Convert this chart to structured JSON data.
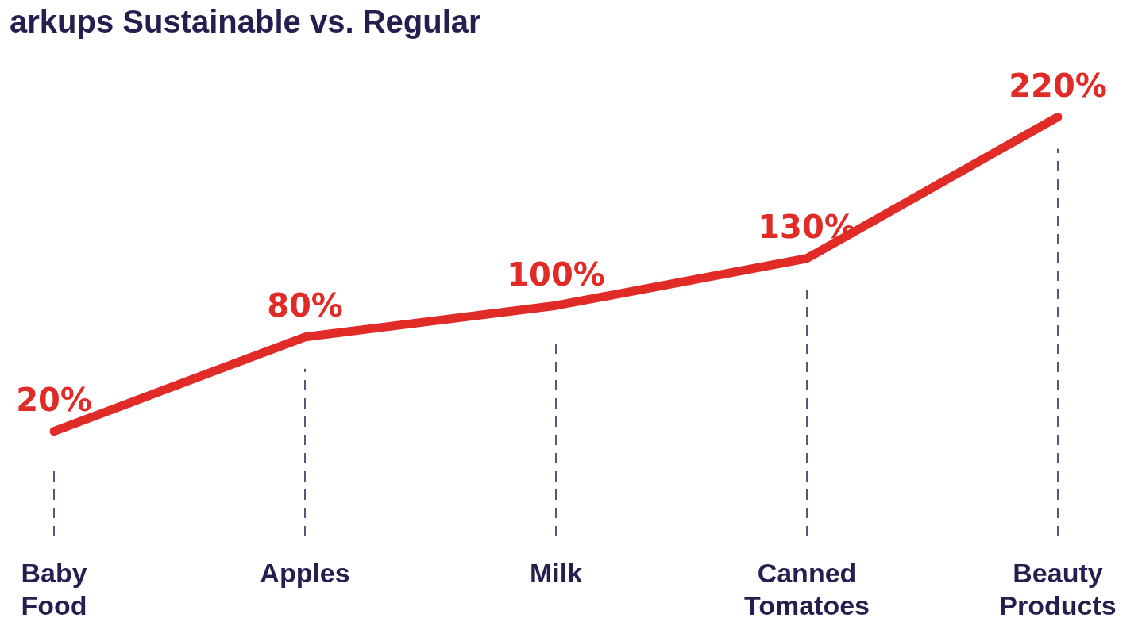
{
  "chart_data": {
    "type": "line",
    "title": "arkups Sustainable vs. Regular",
    "categories": [
      "Baby Food",
      "Apples",
      "Milk",
      "Canned Tomatoes",
      "Beauty Products"
    ],
    "series": [
      {
        "color": "#e02b27",
        "values": [
          20,
          80,
          100,
          130,
          220
        ],
        "value_labels": [
          "20%",
          "80%",
          "100%",
          "130%",
          "220%"
        ]
      }
    ],
    "tick_labels": "x",
    "grid": "x",
    "legend": false,
    "marker": "none",
    "line_style": "solid"
  }
}
